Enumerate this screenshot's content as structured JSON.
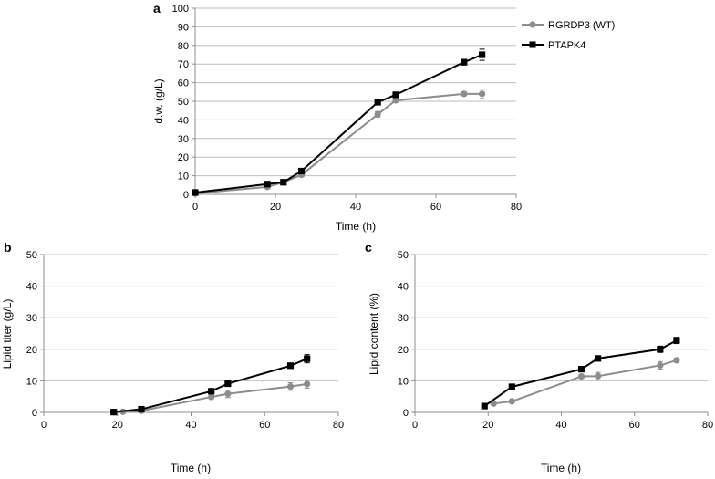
{
  "legend": [
    {
      "name": "RGRDP3 (WT)",
      "color": "#8c8c8c",
      "marker": "circle"
    },
    {
      "name": "PTAPK4",
      "color": "#000000",
      "marker": "square"
    }
  ],
  "chart_data": [
    {
      "panel": "a",
      "type": "line",
      "xlabel": "Time (h)",
      "ylabel": "d.w. (g/L)",
      "xlim": [
        0,
        80
      ],
      "ylim": [
        0,
        100
      ],
      "xticks": [
        0,
        20,
        40,
        60,
        80
      ],
      "yticks": [
        0,
        10,
        20,
        30,
        40,
        50,
        60,
        70,
        80,
        90,
        100
      ],
      "grid": true,
      "legend_position": "right",
      "series": [
        {
          "name": "RGRDP3 (WT)",
          "x": [
            0,
            18,
            22,
            26.5,
            45.5,
            50,
            67,
            71.5
          ],
          "y": [
            0.5,
            4,
            6.5,
            10.5,
            43,
            50.5,
            54,
            54
          ],
          "err": [
            0.3,
            0.5,
            0.5,
            1,
            1.5,
            1,
            1,
            2.5
          ]
        },
        {
          "name": "PTAPK4",
          "x": [
            0,
            18,
            22,
            26.5,
            45.5,
            50,
            67,
            71.5
          ],
          "y": [
            1,
            5.5,
            6.5,
            12.5,
            49.5,
            53.5,
            71,
            75
          ],
          "err": [
            0.3,
            0.5,
            0.5,
            1,
            1,
            1,
            1.5,
            3
          ]
        }
      ]
    },
    {
      "panel": "b",
      "type": "line",
      "xlabel": "Time (h)",
      "ylabel": "Lipid titer (g/L)",
      "xlim": [
        0,
        80
      ],
      "ylim": [
        0,
        50
      ],
      "xticks": [
        0,
        20,
        40,
        60,
        80
      ],
      "yticks": [
        0,
        10,
        20,
        30,
        40,
        50
      ],
      "grid": true,
      "series": [
        {
          "name": "RGRDP3 (WT)",
          "x": [
            21.5,
            26.5,
            45.5,
            50,
            67,
            71.5
          ],
          "y": [
            0.2,
            0.5,
            4.9,
            5.9,
            8.2,
            9
          ],
          "err": [
            0.2,
            0.3,
            0.5,
            1.2,
            1.2,
            1.3
          ]
        },
        {
          "name": "PTAPK4",
          "x": [
            19,
            26.5,
            45.5,
            50,
            67,
            71.5
          ],
          "y": [
            0.1,
            1,
            6.7,
            9.1,
            14.8,
            17
          ],
          "err": [
            0.2,
            0.3,
            0.5,
            0.6,
            0.6,
            1.3
          ]
        }
      ]
    },
    {
      "panel": "c",
      "type": "line",
      "xlabel": "Time (h)",
      "ylabel": "Lipid content (%)",
      "xlim": [
        0,
        80
      ],
      "ylim": [
        0,
        50
      ],
      "xticks": [
        0,
        20,
        40,
        60,
        80
      ],
      "yticks": [
        0,
        10,
        20,
        30,
        40,
        50
      ],
      "grid": true,
      "series": [
        {
          "name": "RGRDP3 (WT)",
          "x": [
            21.5,
            26.5,
            45.5,
            50,
            67,
            71.5
          ],
          "y": [
            2.8,
            3.5,
            11.4,
            11.5,
            14.9,
            16.5
          ],
          "err": [
            0.3,
            0.4,
            0.6,
            1.2,
            1.2,
            0.6
          ]
        },
        {
          "name": "PTAPK4",
          "x": [
            19,
            26.5,
            45.5,
            50,
            67,
            71.5
          ],
          "y": [
            2,
            8.1,
            13.7,
            17.1,
            20,
            22.8
          ],
          "err": [
            0.2,
            0.3,
            0.5,
            0.6,
            1,
            1
          ]
        }
      ]
    }
  ]
}
